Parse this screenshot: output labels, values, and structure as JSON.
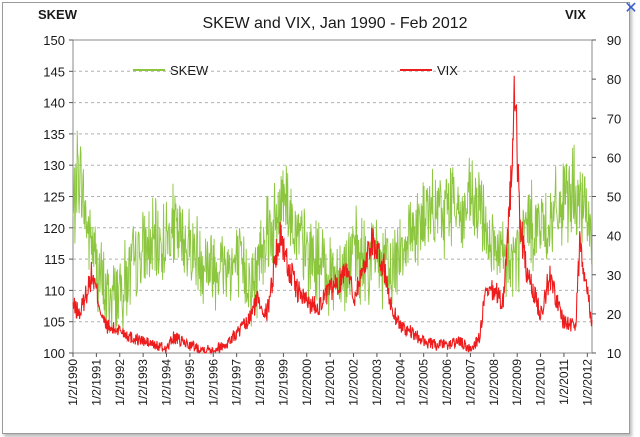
{
  "chart_data": {
    "type": "line",
    "title": "SKEW and VIX, Jan 1990 - Feb 2012",
    "y_left_label": "SKEW",
    "y_right_label": "VIX",
    "y_left_range": [
      100,
      150
    ],
    "y_right_range": [
      10,
      90
    ],
    "y_left_ticks": [
      "100",
      "105",
      "110",
      "115",
      "120",
      "125",
      "130",
      "135",
      "140",
      "145",
      "150"
    ],
    "y_right_ticks": [
      "10",
      "20",
      "30",
      "40",
      "50",
      "60",
      "70",
      "80",
      "90"
    ],
    "x_range": [
      1990.0,
      2012.2
    ],
    "x_ticks": [
      "1/2/1990",
      "1/2/1991",
      "1/2/1992",
      "1/2/1993",
      "1/2/1994",
      "1/2/1995",
      "1/2/1996",
      "1/2/1997",
      "1/2/1998",
      "1/2/1999",
      "1/2/2000",
      "1/2/2001",
      "1/2/2002",
      "1/2/2003",
      "1/2/2004",
      "1/2/2005",
      "1/2/2006",
      "1/2/2007",
      "1/2/2008",
      "1/2/2009",
      "1/2/2010",
      "1/2/2011",
      "1/2/2012"
    ],
    "gridlines": "horizontal, dashed",
    "legend_position": "top",
    "series": [
      {
        "name": "SKEW",
        "axis": "left",
        "color": "#8cc63f",
        "x": [
          1990.0,
          1990.2,
          1990.4,
          1990.6,
          1990.8,
          1991.0,
          1991.3,
          1991.6,
          1992.0,
          1992.5,
          1993.0,
          1993.5,
          1994.0,
          1994.3,
          1994.6,
          1995.0,
          1995.5,
          1996.0,
          1996.5,
          1997.0,
          1997.5,
          1997.8,
          1998.0,
          1998.3,
          1998.6,
          1998.9,
          1999.0,
          1999.3,
          1999.6,
          2000.0,
          2000.5,
          2001.0,
          2001.5,
          2002.0,
          2002.5,
          2003.0,
          2003.5,
          2004.0,
          2004.5,
          2005.0,
          2005.5,
          2006.0,
          2006.3,
          2006.6,
          2007.0,
          2007.5,
          2008.0,
          2008.5,
          2008.9,
          2009.2,
          2009.5,
          2010.0,
          2010.5,
          2011.0,
          2011.4,
          2011.7,
          2012.0,
          2012.2
        ],
        "values": [
          121,
          130,
          126,
          120,
          118,
          114,
          110,
          109,
          110,
          113,
          116,
          117,
          118,
          120,
          118,
          117,
          115,
          114,
          114,
          114,
          112,
          111,
          116,
          121,
          119,
          124,
          128,
          122,
          118,
          116,
          114,
          113,
          113,
          116,
          114,
          116,
          112,
          117,
          120,
          121,
          122,
          123,
          126,
          121,
          124,
          122,
          116,
          114,
          115,
          118,
          121,
          120,
          121,
          124,
          126,
          122,
          123,
          120
        ]
      },
      {
        "name": "VIX",
        "axis": "right",
        "color": "#ee1c1c",
        "x": [
          1990.0,
          1990.3,
          1990.6,
          1990.8,
          1991.0,
          1991.3,
          1991.6,
          1992.0,
          1992.5,
          1993.0,
          1993.5,
          1994.0,
          1994.3,
          1994.6,
          1995.0,
          1995.5,
          1996.0,
          1996.5,
          1997.0,
          1997.5,
          1997.9,
          1998.3,
          1998.7,
          1998.9,
          1999.2,
          1999.6,
          2000.0,
          2000.5,
          2001.0,
          2001.4,
          2001.7,
          2002.0,
          2002.5,
          2002.8,
          2003.0,
          2003.3,
          2003.6,
          2004.0,
          2004.5,
          2005.0,
          2005.5,
          2006.0,
          2006.5,
          2007.0,
          2007.4,
          2007.6,
          2008.0,
          2008.4,
          2008.8,
          2008.9,
          2009.1,
          2009.4,
          2009.8,
          2010.0,
          2010.4,
          2010.8,
          2011.0,
          2011.5,
          2011.7,
          2011.9,
          2012.2
        ],
        "values": [
          22,
          20,
          26,
          30,
          26,
          18,
          16,
          16,
          14,
          13,
          12,
          11,
          14,
          13,
          12,
          11,
          11,
          12,
          15,
          18,
          24,
          20,
          36,
          40,
          32,
          26,
          23,
          22,
          26,
          28,
          33,
          24,
          33,
          40,
          35,
          32,
          22,
          17,
          15,
          13,
          12,
          12,
          13,
          11,
          14,
          24,
          26,
          23,
          60,
          78,
          45,
          30,
          24,
          20,
          30,
          21,
          18,
          17,
          40,
          30,
          18
        ]
      }
    ]
  }
}
